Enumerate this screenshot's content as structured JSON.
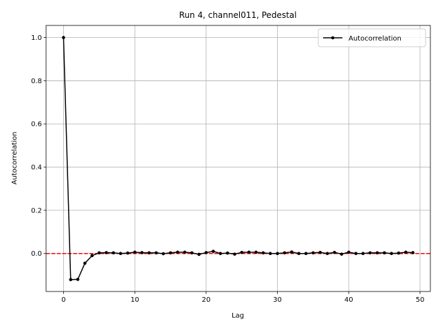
{
  "chart_data": {
    "type": "line",
    "title": "Run 4, channel011, Pedestal",
    "xlabel": "Lag",
    "ylabel": "Autocorrelation",
    "x": [
      0,
      1,
      2,
      3,
      4,
      5,
      6,
      7,
      8,
      9,
      10,
      11,
      12,
      13,
      14,
      15,
      16,
      17,
      18,
      19,
      20,
      21,
      22,
      23,
      24,
      25,
      26,
      27,
      28,
      29,
      30,
      31,
      32,
      33,
      34,
      35,
      36,
      37,
      38,
      39,
      40,
      41,
      42,
      43,
      44,
      45,
      46,
      47,
      48,
      49
    ],
    "series": [
      {
        "name": "Autocorrelation",
        "color": "#000000",
        "marker": "o",
        "values": [
          1.0,
          -0.121,
          -0.12,
          -0.045,
          -0.01,
          0.003,
          0.004,
          0.003,
          0.0,
          0.002,
          0.006,
          0.004,
          0.003,
          0.003,
          -0.001,
          0.003,
          0.006,
          0.006,
          0.003,
          -0.004,
          0.004,
          0.01,
          0.0,
          0.002,
          -0.003,
          0.005,
          0.006,
          0.006,
          0.003,
          0.0,
          0.0,
          0.003,
          0.007,
          0.0,
          0.0,
          0.003,
          0.005,
          0.0,
          0.005,
          -0.003,
          0.006,
          0.0,
          0.0,
          0.003,
          0.003,
          0.003,
          0.0,
          0.002,
          0.006,
          0.004
        ]
      }
    ],
    "hline": {
      "y": 0,
      "color": "#ff0000",
      "linestyle": "dashed"
    },
    "xlim": [
      -2.45,
      51.45
    ],
    "xticks": [
      0,
      10,
      20,
      30,
      40,
      50
    ],
    "ylim": [
      -0.176,
      1.056
    ],
    "yticks": [
      {
        "value": 0,
        "label": "0.0"
      },
      {
        "value": 0.2,
        "label": "0.2"
      },
      {
        "value": 0.4,
        "label": "0.4"
      },
      {
        "value": 0.6,
        "label": "0.6"
      },
      {
        "value": 0.8,
        "label": "0.8"
      },
      {
        "value": 1.0,
        "label": "1.0"
      }
    ],
    "grid": true,
    "legend": "upper right"
  }
}
